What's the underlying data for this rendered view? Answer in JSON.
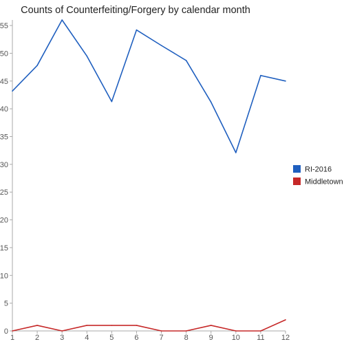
{
  "chart_data": {
    "type": "line",
    "title": "Counts of Counterfeiting/Forgery by calendar month",
    "xlabel": "",
    "ylabel": "",
    "x": [
      1,
      2,
      3,
      4,
      5,
      6,
      7,
      8,
      9,
      10,
      11,
      12
    ],
    "ylim": [
      0,
      56
    ],
    "yticks": [
      0,
      5,
      10,
      15,
      20,
      25,
      30,
      35,
      40,
      45,
      50,
      55
    ],
    "grid": false,
    "legend_position": "right",
    "series": [
      {
        "name": "RI-2016",
        "color": "#1f5fbf",
        "values": [
          43.2,
          47.8,
          56,
          49.5,
          41.3,
          54.2,
          51.4,
          48.7,
          41.2,
          32.1,
          46.0,
          45.0
        ]
      },
      {
        "name": "Middletown",
        "color": "#c62828",
        "values": [
          0,
          1,
          0,
          1,
          1,
          1,
          0,
          0,
          1,
          0,
          0,
          2
        ]
      }
    ]
  }
}
